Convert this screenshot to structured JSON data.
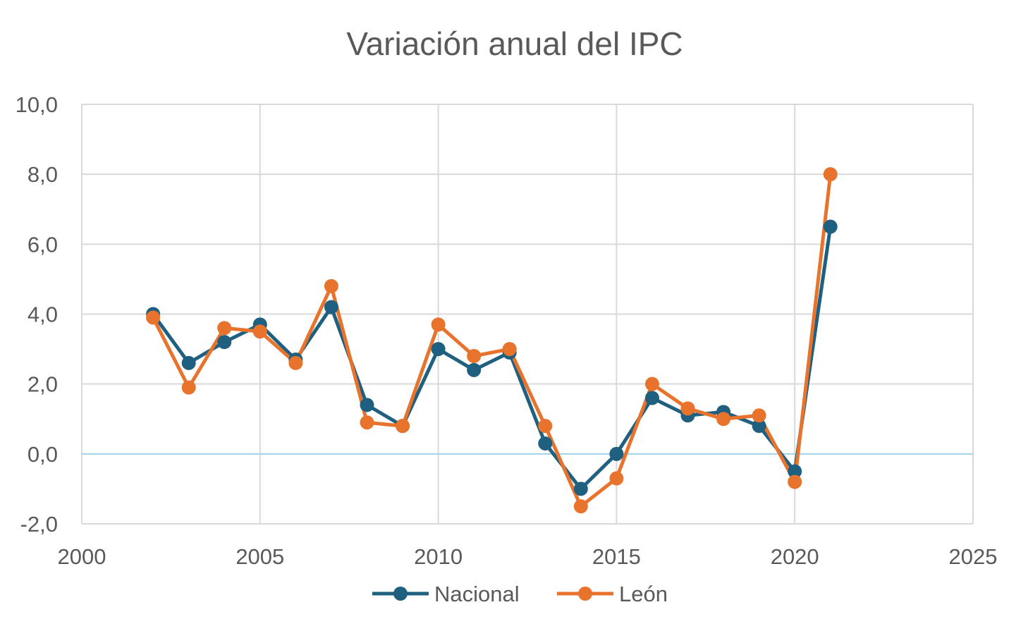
{
  "chart_data": {
    "type": "scatter",
    "title": "Variación anual del IPC",
    "xlabel": "",
    "ylabel": "",
    "xlim": [
      2000,
      2025
    ],
    "ylim": [
      -2.0,
      10.0
    ],
    "x_ticks": [
      2000,
      2005,
      2010,
      2015,
      2020,
      2025
    ],
    "x_tick_labels": [
      "2000",
      "2005",
      "2010",
      "2015",
      "2020",
      "2025"
    ],
    "y_ticks": [
      -2.0,
      0.0,
      2.0,
      4.0,
      6.0,
      8.0,
      10.0
    ],
    "y_tick_labels": [
      "-2,0",
      "0,0",
      "2,0",
      "4,0",
      "6,0",
      "8,0",
      "10,0"
    ],
    "grid": true,
    "legend_position": "bottom",
    "series": [
      {
        "name": "Nacional",
        "color": "#1f5f7f",
        "x": [
          2002,
          2003,
          2004,
          2005,
          2006,
          2007,
          2008,
          2009,
          2010,
          2011,
          2012,
          2013,
          2014,
          2015,
          2016,
          2017,
          2018,
          2019,
          2020,
          2021
        ],
        "values": [
          4.0,
          2.6,
          3.2,
          3.7,
          2.7,
          4.2,
          1.4,
          0.8,
          3.0,
          2.4,
          2.9,
          0.3,
          -1.0,
          0.0,
          1.6,
          1.1,
          1.2,
          0.8,
          -0.5,
          6.5
        ]
      },
      {
        "name": "León",
        "color": "#e8732d",
        "x": [
          2002,
          2003,
          2004,
          2005,
          2006,
          2007,
          2008,
          2009,
          2010,
          2011,
          2012,
          2013,
          2014,
          2015,
          2016,
          2017,
          2018,
          2019,
          2020,
          2021
        ],
        "values": [
          3.9,
          1.9,
          3.6,
          3.5,
          2.6,
          4.8,
          0.9,
          0.8,
          3.7,
          2.8,
          3.0,
          0.8,
          -1.5,
          -0.7,
          2.0,
          1.3,
          1.0,
          1.1,
          -0.8,
          8.0
        ]
      }
    ],
    "zero_line_color": "#9fd3ea",
    "grid_color": "#d9d9d9",
    "text_color": "#595959"
  }
}
